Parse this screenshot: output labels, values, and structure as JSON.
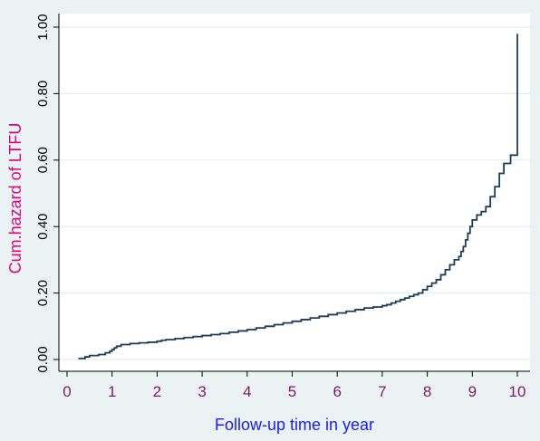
{
  "chart_data": {
    "type": "line",
    "title": "",
    "xlabel": "Follow-up time in year",
    "ylabel": "Cum.hazard of LTFU",
    "xlim": [
      0,
      10
    ],
    "ylim": [
      0,
      1
    ],
    "xticks": [
      0,
      1,
      2,
      3,
      4,
      5,
      6,
      7,
      8,
      9,
      10
    ],
    "xtick_labels": [
      "0",
      "1",
      "2",
      "3",
      "4",
      "5",
      "6",
      "7",
      "8",
      "9",
      "10"
    ],
    "yticks": [
      0,
      0.2,
      0.4,
      0.6,
      0.8,
      1.0
    ],
    "ytick_labels": [
      "0.00",
      "0.20",
      "0.40",
      "0.60",
      "0.80",
      "1.00"
    ],
    "grid": true,
    "step": true,
    "series": [
      {
        "x": [
          0.25,
          0.4,
          0.5,
          0.7,
          0.85,
          0.95,
          1.0,
          1.05,
          1.1,
          1.2,
          1.4,
          1.6,
          1.8,
          2.0,
          2.1,
          2.2,
          2.4,
          2.6,
          2.8,
          3.0,
          3.2,
          3.4,
          3.6,
          3.8,
          4.0,
          4.2,
          4.4,
          4.6,
          4.8,
          5.0,
          5.2,
          5.4,
          5.6,
          5.8,
          6.0,
          6.2,
          6.4,
          6.6,
          6.8,
          7.0,
          7.1,
          7.2,
          7.3,
          7.4,
          7.5,
          7.6,
          7.7,
          7.8,
          7.9,
          8.0,
          8.1,
          8.2,
          8.3,
          8.4,
          8.5,
          8.6,
          8.7,
          8.75,
          8.8,
          8.85,
          8.9,
          8.95,
          9.0,
          9.1,
          9.2,
          9.3,
          9.4,
          9.5,
          9.6,
          9.7,
          9.85,
          10.0,
          10.0
        ],
        "y": [
          0.003,
          0.008,
          0.012,
          0.015,
          0.02,
          0.025,
          0.03,
          0.035,
          0.04,
          0.045,
          0.048,
          0.05,
          0.052,
          0.055,
          0.058,
          0.06,
          0.063,
          0.066,
          0.069,
          0.072,
          0.075,
          0.078,
          0.082,
          0.086,
          0.09,
          0.095,
          0.1,
          0.105,
          0.11,
          0.115,
          0.12,
          0.125,
          0.13,
          0.135,
          0.14,
          0.145,
          0.15,
          0.155,
          0.158,
          0.162,
          0.165,
          0.17,
          0.175,
          0.18,
          0.185,
          0.19,
          0.195,
          0.2,
          0.21,
          0.22,
          0.23,
          0.24,
          0.255,
          0.27,
          0.285,
          0.3,
          0.31,
          0.325,
          0.34,
          0.36,
          0.38,
          0.4,
          0.42,
          0.435,
          0.445,
          0.46,
          0.49,
          0.52,
          0.56,
          0.59,
          0.615,
          0.98,
          0.98
        ]
      }
    ]
  },
  "colors": {
    "background": "#eaf2f3",
    "plot_background": "#ffffff",
    "line": "#1f3d5a",
    "ylabel_color": "#e4007a",
    "xlabel_color": "#1a1aff",
    "xtick_color": "#7a1a6a",
    "grid": "#e6ecef"
  }
}
